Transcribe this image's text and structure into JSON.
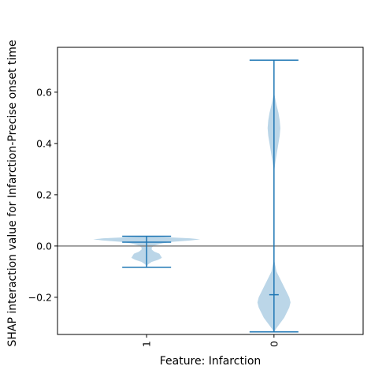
{
  "chart_data": {
    "type": "violin",
    "title": "",
    "xlabel": "Feature: Infarction",
    "ylabel": "SHAP interaction value for Infarction-Precise onset time",
    "categories": [
      "1",
      "0"
    ],
    "xlim": [
      0.3,
      2.7
    ],
    "ylim": [
      -0.345,
      0.775
    ],
    "yticks": [
      -0.2,
      0.0,
      0.2,
      0.4,
      0.6
    ],
    "ytick_labels": [
      "−0.2",
      "0.0",
      "0.2",
      "0.4",
      "0.6"
    ],
    "reference_line_y": 0.0,
    "reference_line_color": "#808080",
    "violin_color": "#1f77b4",
    "grid": false,
    "legend": false,
    "violins": [
      {
        "category": "1",
        "x": 1,
        "min": -0.083,
        "max": 0.038,
        "median": 0.015,
        "density": [
          [
            -0.083,
            0.0
          ],
          [
            -0.072,
            0.01
          ],
          [
            -0.062,
            0.04
          ],
          [
            -0.054,
            0.09
          ],
          [
            -0.046,
            0.12
          ],
          [
            -0.038,
            0.11
          ],
          [
            -0.03,
            0.1
          ],
          [
            -0.022,
            0.06
          ],
          [
            -0.014,
            0.04
          ],
          [
            -0.006,
            0.04
          ],
          [
            0.002,
            0.06
          ],
          [
            0.01,
            0.12
          ],
          [
            0.016,
            0.2
          ],
          [
            0.022,
            0.35
          ],
          [
            0.026,
            0.42
          ],
          [
            0.03,
            0.34
          ],
          [
            0.034,
            0.18
          ],
          [
            0.038,
            0.0
          ]
        ]
      },
      {
        "category": "0",
        "x": 2,
        "min": -0.335,
        "max": 0.725,
        "median": -0.19,
        "density": [
          [
            -0.335,
            0.0
          ],
          [
            -0.32,
            0.02
          ],
          [
            -0.3,
            0.05
          ],
          [
            -0.28,
            0.08
          ],
          [
            -0.26,
            0.1
          ],
          [
            -0.24,
            0.12
          ],
          [
            -0.22,
            0.13
          ],
          [
            -0.2,
            0.12
          ],
          [
            -0.18,
            0.1
          ],
          [
            -0.16,
            0.08
          ],
          [
            -0.14,
            0.06
          ],
          [
            -0.12,
            0.04
          ],
          [
            -0.1,
            0.02
          ],
          [
            -0.08,
            0.012
          ],
          [
            -0.06,
            0.004
          ],
          [
            -0.04,
            0.0
          ],
          [
            0.28,
            0.0
          ],
          [
            0.3,
            0.004
          ],
          [
            0.33,
            0.012
          ],
          [
            0.37,
            0.025
          ],
          [
            0.4,
            0.035
          ],
          [
            0.43,
            0.045
          ],
          [
            0.46,
            0.05
          ],
          [
            0.49,
            0.045
          ],
          [
            0.52,
            0.035
          ],
          [
            0.55,
            0.02
          ],
          [
            0.58,
            0.008
          ],
          [
            0.6,
            0.0
          ],
          [
            0.725,
            0.0
          ]
        ]
      }
    ]
  }
}
